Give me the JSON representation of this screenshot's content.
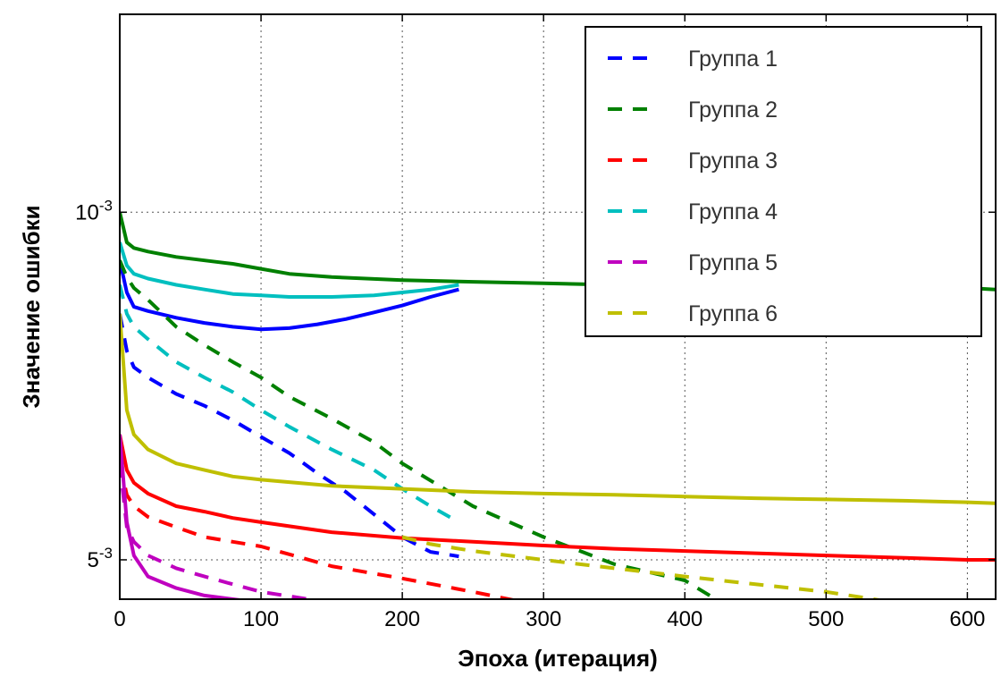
{
  "chart_data": {
    "type": "line",
    "xlabel": "Эпоха (итерация)",
    "ylabel": "Значение ошибки",
    "xlim": [
      0,
      620
    ],
    "ylim": [
      0.006,
      0.0004
    ],
    "y_scale": "log",
    "x_ticks": [
      0,
      100,
      200,
      300,
      400,
      500,
      600
    ],
    "x_tick_labels": [
      "0",
      "100",
      "200",
      "300",
      "400",
      "500",
      "600"
    ],
    "y_ticks": [
      {
        "value": 0.001,
        "base": "10",
        "exp": "-3"
      },
      {
        "value": 0.005,
        "base": "5",
        "exp": "-3"
      }
    ],
    "grid": true,
    "legend_position": "top-right",
    "series": [
      {
        "name": "Группа 1",
        "color": "#0000ff",
        "solid": {
          "x": [
            0,
            5,
            10,
            20,
            40,
            60,
            80,
            100,
            120,
            140,
            160,
            180,
            200,
            220,
            240
          ],
          "y": [
            0.00125,
            0.00145,
            0.00155,
            0.00158,
            0.00163,
            0.00167,
            0.0017,
            0.00172,
            0.00171,
            0.00168,
            0.00164,
            0.00159,
            0.00154,
            0.00148,
            0.00143
          ]
        },
        "dashed": {
          "x": [
            0,
            5,
            10,
            20,
            40,
            60,
            80,
            100,
            120,
            140,
            160,
            180,
            200,
            220,
            240
          ],
          "y": [
            0.0016,
            0.0019,
            0.00205,
            0.00215,
            0.00232,
            0.00245,
            0.00262,
            0.00283,
            0.00305,
            0.00335,
            0.00365,
            0.00405,
            0.0045,
            0.00482,
            0.00492
          ]
        }
      },
      {
        "name": "Группа 2",
        "color": "#008000",
        "solid": {
          "x": [
            0,
            5,
            10,
            20,
            40,
            60,
            80,
            100,
            120,
            150,
            200,
            250,
            300,
            350,
            400,
            450,
            500,
            550,
            600,
            620
          ],
          "y": [
            0.001,
            0.00115,
            0.00118,
            0.0012,
            0.00123,
            0.00125,
            0.00127,
            0.0013,
            0.00133,
            0.00135,
            0.00137,
            0.00138,
            0.00139,
            0.0014,
            0.0014,
            0.0014,
            0.00141,
            0.00141,
            0.00142,
            0.00143
          ]
        },
        "dashed": {
          "x": [
            0,
            5,
            10,
            20,
            40,
            60,
            80,
            100,
            120,
            150,
            180,
            200,
            250,
            300,
            350,
            400,
            430,
            450,
            500,
            550,
            600,
            620
          ],
          "y": [
            0.00125,
            0.00135,
            0.00142,
            0.0015,
            0.0017,
            0.00185,
            0.002,
            0.00215,
            0.00235,
            0.0026,
            0.0029,
            0.0032,
            0.0039,
            0.0045,
            0.0051,
            0.0055,
            0.0062,
            0.0061,
            0.0063,
            0.0066,
            0.0072,
            0.0085
          ]
        }
      },
      {
        "name": "Группа 3",
        "color": "#ff0000",
        "solid": {
          "x": [
            0,
            5,
            10,
            20,
            40,
            60,
            80,
            100,
            150,
            200,
            250,
            300,
            350,
            400,
            450,
            500,
            550,
            600,
            620
          ],
          "y": [
            0.0028,
            0.0033,
            0.0035,
            0.00368,
            0.0039,
            0.004,
            0.00412,
            0.0042,
            0.0044,
            0.00452,
            0.0046,
            0.00468,
            0.00475,
            0.0048,
            0.00485,
            0.0049,
            0.00495,
            0.005,
            0.005
          ]
        },
        "dashed": {
          "x": [
            0,
            5,
            10,
            20,
            40,
            60,
            80,
            100,
            150,
            200,
            250,
            300,
            350,
            400,
            450,
            500,
            550,
            600,
            620
          ],
          "y": [
            0.0032,
            0.0037,
            0.0039,
            0.0041,
            0.0043,
            0.0045,
            0.0046,
            0.0047,
            0.00515,
            0.00545,
            0.0058,
            0.0062,
            0.0064,
            0.0066,
            0.0069,
            0.0071,
            0.0074,
            0.0078,
            0.0082
          ]
        }
      },
      {
        "name": "Группа 4",
        "color": "#00bfbf",
        "solid": {
          "x": [
            0,
            5,
            10,
            20,
            40,
            60,
            80,
            100,
            120,
            150,
            180,
            200,
            220,
            240
          ],
          "y": [
            0.00115,
            0.00128,
            0.00133,
            0.00136,
            0.0014,
            0.00143,
            0.00146,
            0.00147,
            0.00148,
            0.00148,
            0.00147,
            0.00145,
            0.00143,
            0.0014
          ]
        },
        "dashed": {
          "x": [
            0,
            5,
            10,
            20,
            40,
            60,
            80,
            100,
            120,
            150,
            180,
            200,
            220,
            240
          ],
          "y": [
            0.0014,
            0.0016,
            0.0017,
            0.0018,
            0.002,
            0.00215,
            0.0023,
            0.0025,
            0.0027,
            0.003,
            0.0033,
            0.0036,
            0.0039,
            0.0042
          ]
        }
      },
      {
        "name": "Группа 5",
        "color": "#bf00bf",
        "solid": {
          "x": [
            0,
            5,
            10,
            20,
            40,
            60,
            80,
            100,
            150,
            200,
            250,
            300,
            350,
            400,
            450,
            500,
            550,
            600,
            620
          ],
          "y": [
            0.0028,
            0.0042,
            0.0049,
            0.0054,
            0.0057,
            0.0059,
            0.006,
            0.0061,
            0.0062,
            0.0063,
            0.0064,
            0.0064,
            0.0065,
            0.0065,
            0.0066,
            0.0066,
            0.0067,
            0.0067,
            0.0068
          ]
        },
        "dashed": {
          "x": [
            0,
            5,
            10,
            20,
            40,
            60,
            80,
            100,
            150,
            200,
            250,
            300,
            350,
            400,
            450,
            500,
            550,
            600,
            620
          ],
          "y": [
            0.0032,
            0.0043,
            0.0046,
            0.0049,
            0.0052,
            0.0054,
            0.0056,
            0.0058,
            0.0061,
            0.0064,
            0.0067,
            0.0069,
            0.0072,
            0.0075,
            0.0077,
            0.0079,
            0.0081,
            0.0083,
            0.0085
          ]
        }
      },
      {
        "name": "Группа 6",
        "color": "#bfbf00",
        "solid": {
          "x": [
            0,
            5,
            10,
            20,
            40,
            60,
            80,
            100,
            150,
            200,
            250,
            300,
            350,
            400,
            450,
            500,
            550,
            600,
            620
          ],
          "y": [
            0.0016,
            0.0025,
            0.0028,
            0.003,
            0.0032,
            0.0033,
            0.0034,
            0.00345,
            0.00355,
            0.0036,
            0.00365,
            0.00368,
            0.0037,
            0.00373,
            0.00376,
            0.00378,
            0.0038,
            0.00383,
            0.00385
          ]
        },
        "dashed": {
          "x": [
            200,
            220,
            250,
            300,
            350,
            400,
            450,
            500,
            550,
            600,
            620
          ],
          "y": [
            0.0045,
            0.00465,
            0.0048,
            0.005,
            0.0052,
            0.0054,
            0.0056,
            0.0058,
            0.0061,
            0.0064,
            0.0066
          ]
        }
      }
    ]
  }
}
